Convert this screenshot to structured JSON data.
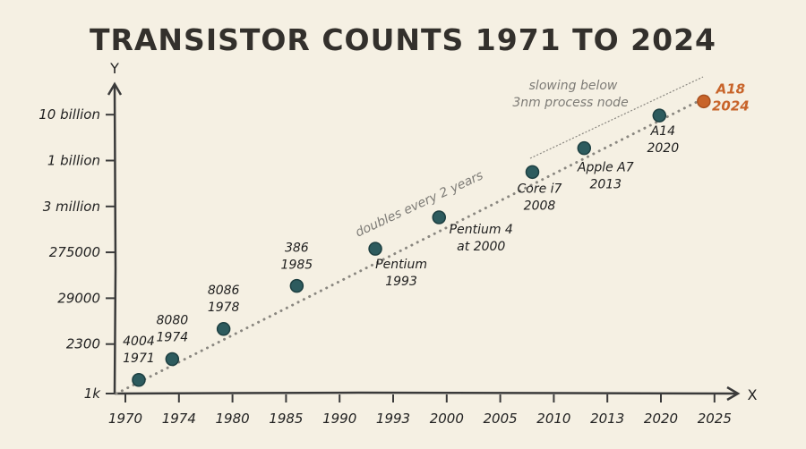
{
  "chart_data": {
    "type": "scatter",
    "title": "TRANSISTOR COUNTS 1971 TO 2024",
    "xlabel": "X",
    "ylabel": "Y",
    "x_ticks": [
      "1970",
      "1974",
      "1980",
      "1985",
      "1990",
      "1993",
      "2000",
      "2005",
      "2010",
      "2013",
      "2020",
      "2025"
    ],
    "y_ticks": [
      "1k",
      "2300",
      "29000",
      "275000",
      "3 million",
      "1 billion",
      "10 billion"
    ],
    "y_tick_values": [
      1000,
      2300,
      29000,
      275000,
      3000000,
      1000000000,
      10000000000
    ],
    "x_tick_values": [
      1970,
      1974,
      1980,
      1985,
      1990,
      1993,
      2000,
      2005,
      2010,
      2013,
      2020,
      2025
    ],
    "y_scale": "log (uneven tick spacing)",
    "grid": false,
    "points": [
      {
        "name": "4004",
        "year_label": "1971",
        "x": 1971,
        "y": 1200
      },
      {
        "name": "8080",
        "year_label": "1974",
        "x": 1973.5,
        "y": 1750
      },
      {
        "name": "8086",
        "year_label": "1978",
        "x": 1979,
        "y": 5300
      },
      {
        "name": "386",
        "year_label": "1985",
        "x": 1986,
        "y": 53000
      },
      {
        "name": "Pentium",
        "year_label": "1993",
        "x": 1992,
        "y": 330000
      },
      {
        "name": "Pentium 4",
        "year_label": "at 2000",
        "x": 1999,
        "y": 1700000
      },
      {
        "name": "Core i7",
        "year_label": "2008",
        "x": 2008,
        "y": 234000000
      },
      {
        "name": "Apple A7",
        "year_label": "2013",
        "x": 2011.7,
        "y": 1860000000
      },
      {
        "name": "A14",
        "year_label": "2020",
        "x": 2019.8,
        "y": 9600000000
      },
      {
        "name": "A18",
        "year_label": "2024",
        "x": 2024,
        "y": 19500000000,
        "highlight": true
      }
    ],
    "annotations": {
      "trend": "doubles every 2 years",
      "slowing_line1": "slowing below",
      "slowing_line2": "3nm process node"
    },
    "colors": {
      "background": "#f5f0e3",
      "point": "#2d5b5e",
      "highlight": "#c8642a",
      "trend": "#8a8780",
      "text": "#222222"
    }
  }
}
